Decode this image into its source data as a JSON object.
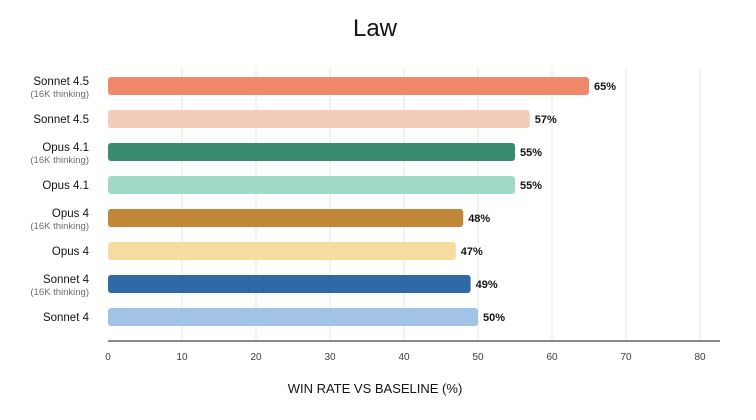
{
  "chart_data": {
    "type": "bar",
    "orientation": "horizontal",
    "title": "Law",
    "xlabel": "WIN RATE VS BASELINE (%)",
    "ylabel": "",
    "xlim": [
      0,
      80
    ],
    "xticks": [
      0,
      10,
      20,
      30,
      40,
      50,
      60,
      70,
      80
    ],
    "grid": "vertical",
    "legend": "none",
    "categories": [
      {
        "name": "Sonnet 4.5",
        "sub": "(16K thinking)"
      },
      {
        "name": "Sonnet 4.5",
        "sub": ""
      },
      {
        "name": "Opus 4.1",
        "sub": "(16K thinking)"
      },
      {
        "name": "Opus 4.1",
        "sub": ""
      },
      {
        "name": "Opus 4",
        "sub": "(16K thinking)"
      },
      {
        "name": "Opus 4",
        "sub": ""
      },
      {
        "name": "Sonnet 4",
        "sub": "(16K thinking)"
      },
      {
        "name": "Sonnet 4",
        "sub": ""
      }
    ],
    "values": [
      65,
      57,
      55,
      55,
      48,
      47,
      49,
      50
    ],
    "value_labels": [
      "65%",
      "57%",
      "55%",
      "55%",
      "48%",
      "47%",
      "49%",
      "50%"
    ],
    "colors": [
      "#f0896a",
      "#f4cdb9",
      "#3a8c6e",
      "#a1dac6",
      "#c08738",
      "#f6dd9f",
      "#2f69a6",
      "#a1c3e6"
    ]
  }
}
